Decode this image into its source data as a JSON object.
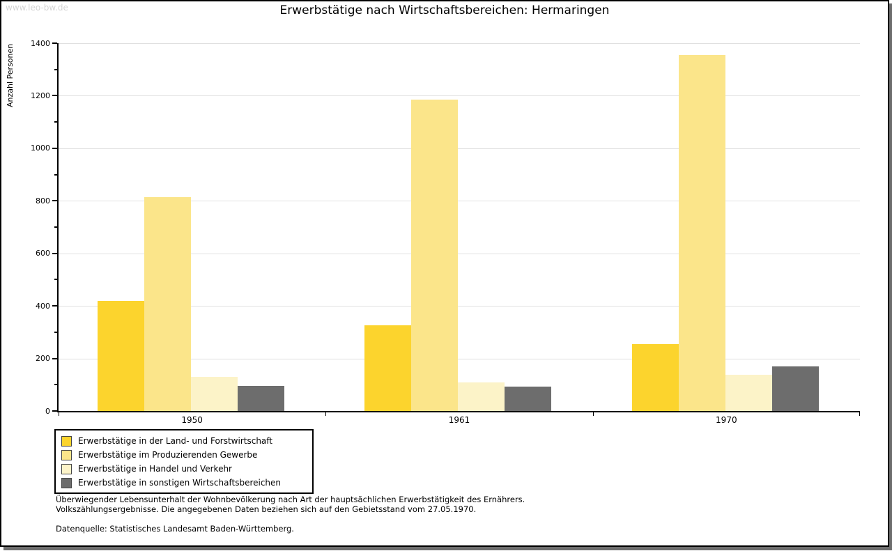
{
  "watermark": "www.leo-bw.de",
  "title": "Erwerbstätige nach Wirtschaftsbereichen: Hermaringen",
  "chart_data": {
    "type": "bar",
    "title": "Erwerbstätige nach Wirtschaftsbereichen: Hermaringen",
    "xlabel": "",
    "ylabel": "Anzahl Personen",
    "categories": [
      "1950",
      "1961",
      "1970"
    ],
    "series": [
      {
        "name": "Erwerbstätige in der Land- und Forstwirtschaft",
        "color": "#fcd42d",
        "values": [
          420,
          325,
          255
        ]
      },
      {
        "name": "Erwerbstätige im Produzierenden Gewerbe",
        "color": "#fbe58a",
        "values": [
          815,
          1185,
          1355
        ]
      },
      {
        "name": "Erwerbstätige in Handel und Verkehr",
        "color": "#fcf3c8",
        "values": [
          130,
          110,
          137
        ]
      },
      {
        "name": "Erwerbstätige in sonstigen Wirtschaftsbereichen",
        "color": "#6d6d6d",
        "values": [
          95,
          93,
          170
        ]
      }
    ],
    "ylim": [
      0,
      1400
    ],
    "ytick_major_step": 200,
    "ytick_minor_step": 100,
    "grid": "horizontal-major",
    "gridline_color": "#e0e0e0",
    "legend_position": "bottom-left"
  },
  "notes": {
    "line1": "Überwiegender Lebensunterhalt der Wohnbevölkerung nach Art der hauptsächlichen Erwerbstätigkeit des Ernährers.",
    "line2": "Volkszählungsergebnisse. Die angegebenen Daten beziehen sich auf den Gebietsstand vom 27.05.1970.",
    "source": "Datenquelle: Statistisches Landesamt Baden-Württemberg."
  }
}
